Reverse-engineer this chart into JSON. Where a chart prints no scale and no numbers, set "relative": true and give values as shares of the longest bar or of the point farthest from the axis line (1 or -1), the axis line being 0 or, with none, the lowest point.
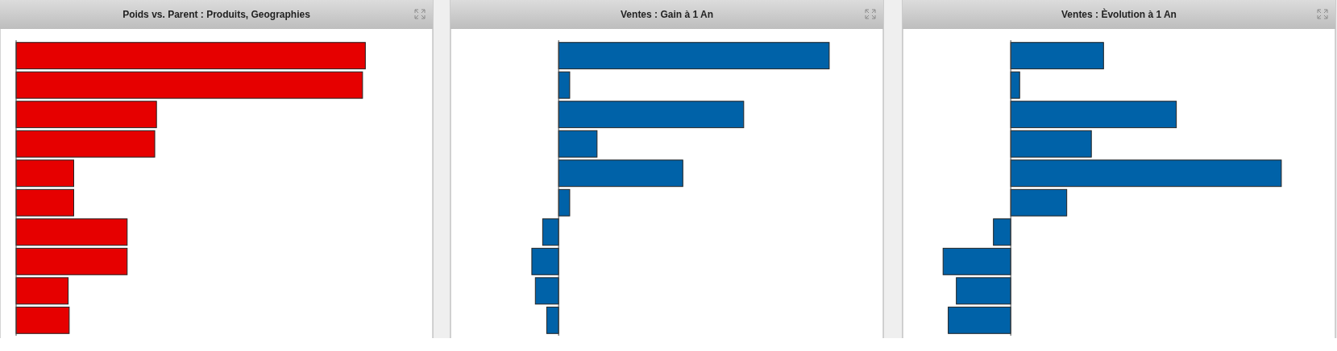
{
  "chart_data": [
    {
      "type": "bar",
      "orientation": "horizontal",
      "relative": true,
      "title": "Poids vs. Parent : Produits, Geographies",
      "categories": [
        null,
        null,
        null,
        null,
        null,
        null,
        null,
        null,
        null,
        null
      ],
      "values": [
        1,
        0.992,
        0.402,
        0.397,
        0.165,
        0.165,
        0.318,
        0.318,
        0.149,
        0.152
      ],
      "color": "#e60000"
    },
    {
      "type": "bar",
      "orientation": "horizontal",
      "relative": true,
      "title": "Ventes : Gain à 1 An",
      "categories": [
        null,
        null,
        null,
        null,
        null,
        null,
        null,
        null,
        null,
        null
      ],
      "values": [
        1,
        0.041,
        0.684,
        0.142,
        0.459,
        0.041,
        -0.059,
        -0.099,
        -0.086,
        -0.044
      ],
      "color": "#0062a8"
    },
    {
      "type": "bar",
      "orientation": "horizontal",
      "relative": true,
      "title": "Ventes : Èvolution à 1 An",
      "categories": [
        null,
        null,
        null,
        null,
        null,
        null,
        null,
        null,
        null,
        null
      ],
      "values": [
        0.343,
        0.033,
        0.612,
        0.298,
        1,
        0.207,
        -0.064,
        -0.25,
        -0.201,
        -0.231
      ],
      "color": "#0062a8"
    }
  ]
}
